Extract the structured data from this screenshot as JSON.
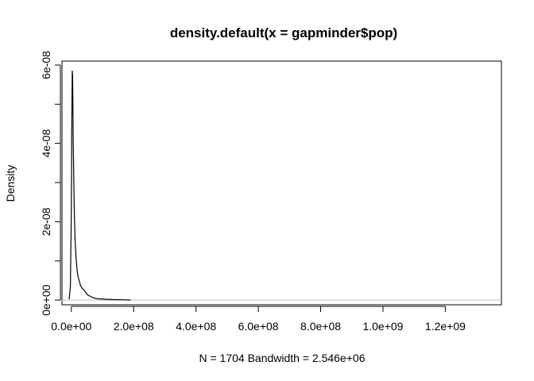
{
  "chart_data": {
    "type": "line",
    "title": "density.default(x = gapminder$pop)",
    "xlabel": "N = 1704   Bandwidth = 2.546e+06",
    "ylabel": "Density",
    "xlim": [
      -30000000,
      1380000000
    ],
    "ylim": [
      -1.2e-09,
      6.1e-08
    ],
    "x_ticks": [
      0,
      200000000,
      400000000,
      600000000,
      800000000,
      1000000000,
      1200000000
    ],
    "x_tick_labels": [
      "0.0e+00",
      "2.0e+08",
      "4.0e+08",
      "6.0e+08",
      "8.0e+08",
      "1.0e+09",
      "1.2e+09"
    ],
    "y_ticks": [
      0,
      2e-08,
      4e-08,
      6e-08
    ],
    "y_tick_labels": [
      "0e+00",
      "2e-08",
      "4e-08",
      "6e-08"
    ],
    "baseline": 0,
    "grid": false,
    "legend": "none",
    "line_color": "#000000",
    "baseline_color": "#bebebe",
    "series": [
      {
        "x": [
          -7000000,
          -3000000,
          0,
          1500000,
          3000000,
          4000000,
          5000000,
          6000000,
          8000000,
          10000000,
          12000000,
          15000000,
          18000000,
          21000000,
          25000000,
          30000000,
          35000000,
          40000000,
          45000000,
          50000000,
          55000000,
          60000000,
          70000000,
          80000000,
          90000000,
          100000000,
          110000000,
          120000000,
          130000000,
          140000000,
          150000000,
          160000000,
          170000000,
          180000000,
          190000000
        ],
        "y": [
          2e-10,
          3.5e-09,
          2.3e-08,
          4.5e-08,
          5.85e-08,
          5.75e-08,
          5.05e-08,
          4.1e-08,
          3e-08,
          2.1e-08,
          1.55e-08,
          1.1e-08,
          8e-09,
          6.2e-09,
          5e-09,
          3.6e-09,
          3e-09,
          2.6e-09,
          2.1e-09,
          1.5e-09,
          1.2e-09,
          1e-09,
          6e-10,
          4e-10,
          3e-10,
          3e-10,
          2e-10,
          2e-10,
          1.5e-10,
          1e-10,
          1e-10,
          1e-10,
          5e-11,
          5e-11,
          2e-11
        ]
      }
    ]
  }
}
